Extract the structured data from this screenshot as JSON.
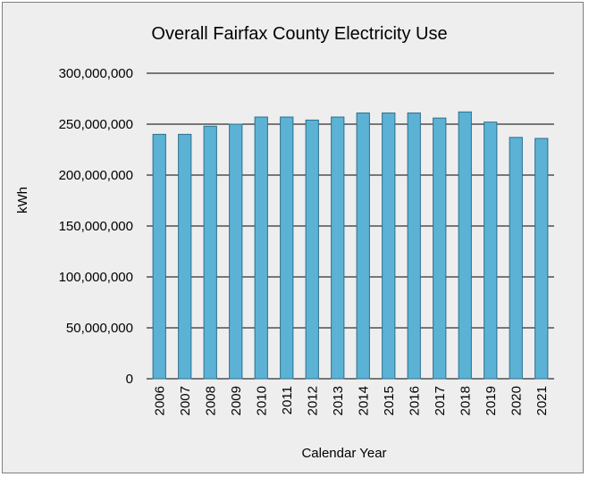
{
  "chart_data": {
    "type": "bar",
    "title": "Overall Fairfax County Electricity Use",
    "xlabel": "Calendar Year",
    "ylabel": "kWh",
    "categories": [
      "2006",
      "2007",
      "2008",
      "2009",
      "2010",
      "2011",
      "2012",
      "2013",
      "2014",
      "2015",
      "2016",
      "2017",
      "2018",
      "2019",
      "2020",
      "2021"
    ],
    "values": [
      240000000,
      240000000,
      248000000,
      250000000,
      257000000,
      257000000,
      254000000,
      257000000,
      261000000,
      261000000,
      261000000,
      256000000,
      262000000,
      252000000,
      237000000,
      236000000
    ],
    "ylim": [
      0,
      300000000
    ],
    "yticks": [
      "0",
      "50,000,000",
      "100,000,000",
      "150,000,000",
      "200,000,000",
      "250,000,000",
      "300,000,000"
    ],
    "ytick_values": [
      0,
      50000000,
      100000000,
      150000000,
      200000000,
      250000000,
      300000000
    ],
    "grid": true,
    "bar_color": "#5bb2d4",
    "bar_edge_color": "#2d6f8e",
    "background_color": "#eeeeee"
  }
}
